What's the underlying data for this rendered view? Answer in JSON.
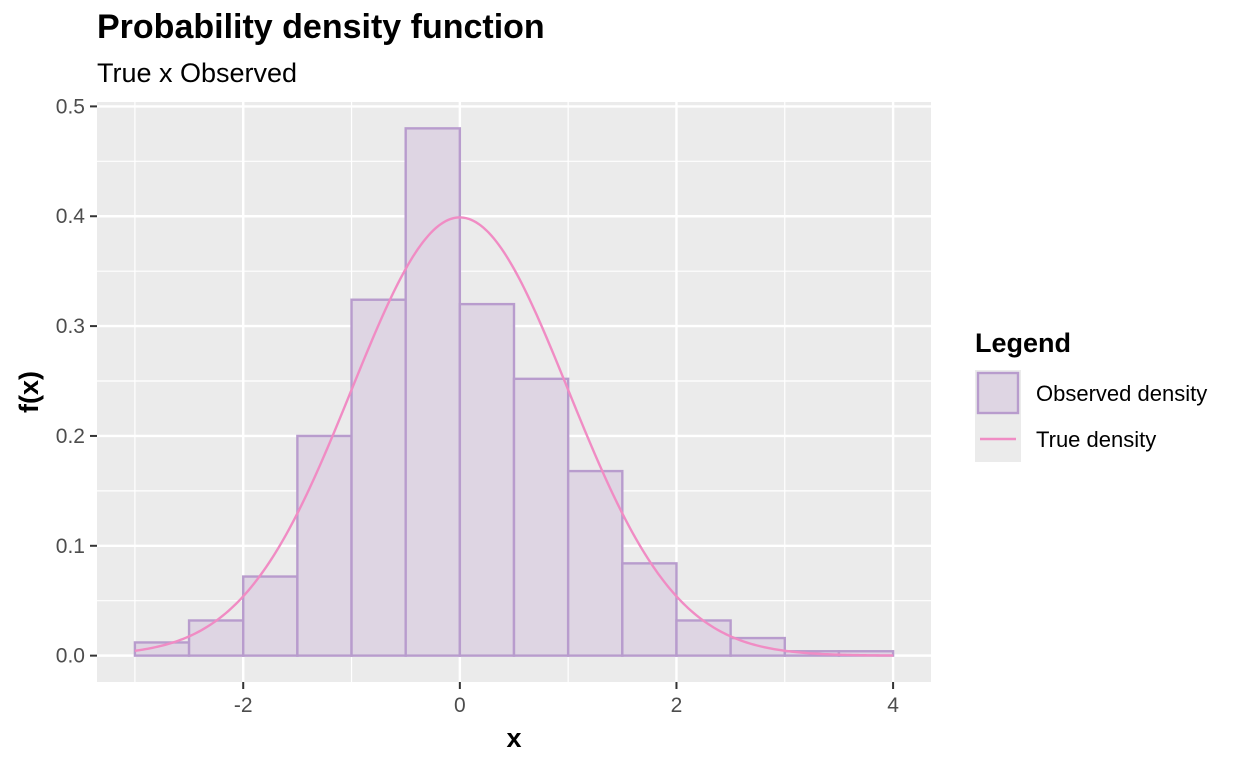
{
  "chart_data": {
    "type": "bar",
    "title": "Probability density function",
    "subtitle": "True x Observed",
    "xlabel": "x",
    "ylabel": "f(x)",
    "xlim": [
      -3.35,
      4.35
    ],
    "ylim": [
      -0.024,
      0.504
    ],
    "x_ticks": [
      "-2",
      "0",
      "2",
      "4"
    ],
    "y_ticks": [
      "0.0",
      "0.1",
      "0.2",
      "0.3",
      "0.4",
      "0.5"
    ],
    "grid": true,
    "legend": {
      "title": "Legend",
      "position": "right",
      "entries": [
        "Observed density",
        "True density"
      ]
    },
    "series": [
      {
        "name": "Observed density",
        "type": "histogram",
        "bin_width": 0.5,
        "bin_edges": [
          -3.0,
          -2.5,
          -2.0,
          -1.5,
          -1.0,
          -0.5,
          0.0,
          0.5,
          1.0,
          1.5,
          2.0,
          2.5,
          3.0,
          3.5,
          4.0
        ],
        "values": [
          0.012,
          0.032,
          0.072,
          0.2,
          0.324,
          0.48,
          0.32,
          0.252,
          0.168,
          0.084,
          0.032,
          0.016,
          0.004,
          0.004
        ]
      },
      {
        "name": "True density",
        "type": "line",
        "function": "standard normal density",
        "x_range": [
          -3.0,
          4.0
        ]
      }
    ],
    "colors": {
      "panel_background": "#ebebeb",
      "grid": "#ffffff",
      "bar_fill": "#ded5e3",
      "bar_stroke": "#b89ccd",
      "line": "#f08cc4",
      "axis_text": "#4d4d4d",
      "tick": "#333333"
    }
  }
}
